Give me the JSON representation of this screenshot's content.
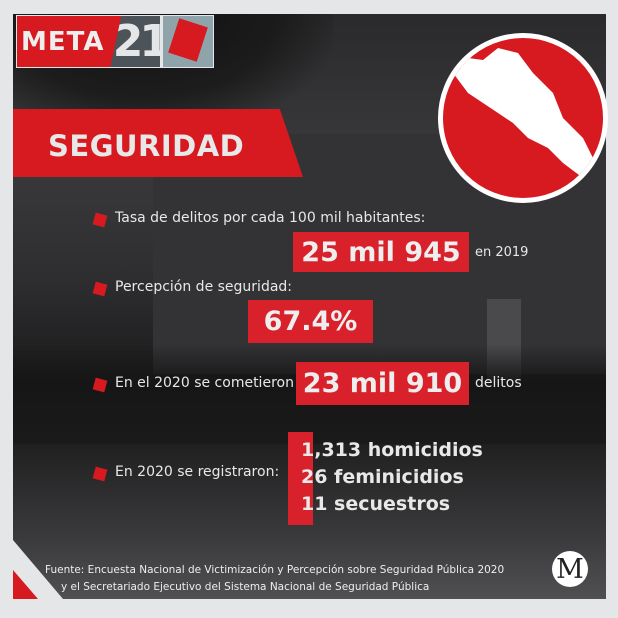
{
  "brand": {
    "logo_text": "META",
    "logo_number": "21",
    "publisher_logo": "M"
  },
  "section_title": "SEGURIDAD",
  "colors": {
    "accent": "#d71920",
    "frame": "#e5e6e7"
  },
  "map_icon": "sinaloa-map-icon",
  "stats": [
    {
      "label": "Tasa de delitos por cada 100 mil habitantes:",
      "value": "25 mil 945",
      "suffix": "en 2019"
    },
    {
      "label": "Percepción de seguridad:",
      "value": "67.4%"
    },
    {
      "label": "En el 2020 se cometieron",
      "value": "23 mil 910",
      "suffix": "delitos"
    },
    {
      "label": "En 2020 se registraron:",
      "items": [
        "1,313 homicidios",
        "26 feminicidios",
        "11 secuestros"
      ]
    }
  ],
  "source": [
    "Fuente: Encuesta Nacional de Victimización y Percepción sobre Seguridad Pública 2020",
    "y el Secretariado Ejecutivo del Sistema Nacional de Seguridad Pública"
  ]
}
